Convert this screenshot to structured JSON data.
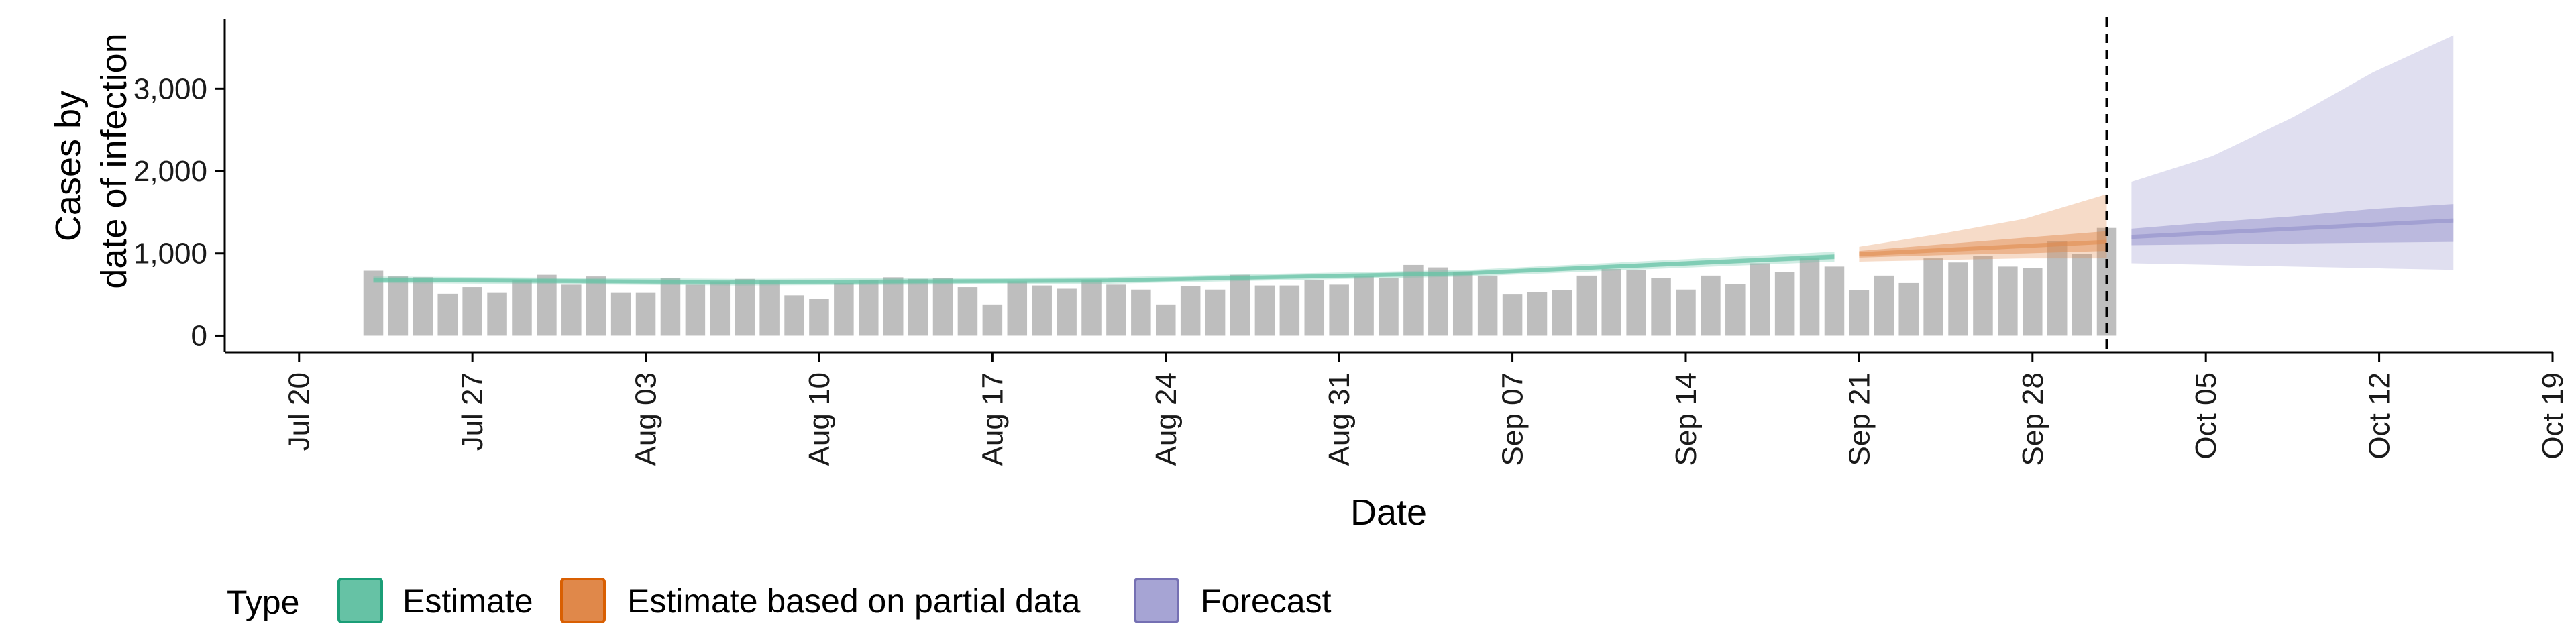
{
  "chart_data": {
    "type": "bar",
    "xlabel": "Date",
    "ylabel_lines": [
      "Cases by",
      "date of infection"
    ],
    "x_range": [
      "2020-07-17",
      "2020-10-19"
    ],
    "ylim": [
      -200,
      3850
    ],
    "y_ticks": [
      {
        "value": 0,
        "label": "0"
      },
      {
        "value": 1000,
        "label": "1,000"
      },
      {
        "value": 2000,
        "label": "2,000"
      },
      {
        "value": 3000,
        "label": "3,000"
      }
    ],
    "x_ticks": [
      {
        "date": "2020-07-20",
        "label": "Jul 20"
      },
      {
        "date": "2020-07-27",
        "label": "Jul 27"
      },
      {
        "date": "2020-08-03",
        "label": "Aug 03"
      },
      {
        "date": "2020-08-10",
        "label": "Aug 10"
      },
      {
        "date": "2020-08-17",
        "label": "Aug 17"
      },
      {
        "date": "2020-08-24",
        "label": "Aug 24"
      },
      {
        "date": "2020-08-31",
        "label": "Aug 31"
      },
      {
        "date": "2020-09-07",
        "label": "Sep 07"
      },
      {
        "date": "2020-09-14",
        "label": "Sep 14"
      },
      {
        "date": "2020-09-21",
        "label": "Sep 21"
      },
      {
        "date": "2020-09-28",
        "label": "Sep 28"
      },
      {
        "date": "2020-10-05",
        "label": "Oct 05"
      },
      {
        "date": "2020-10-12",
        "label": "Oct 12"
      },
      {
        "date": "2020-10-19",
        "label": "Oct 19"
      }
    ],
    "bars": {
      "start_date": "2020-07-23",
      "color": "#bebebe",
      "values": [
        790,
        720,
        710,
        510,
        590,
        520,
        680,
        740,
        620,
        720,
        520,
        520,
        700,
        620,
        660,
        690,
        670,
        490,
        450,
        640,
        680,
        710,
        690,
        700,
        590,
        380,
        660,
        610,
        570,
        680,
        620,
        560,
        380,
        600,
        560,
        740,
        610,
        610,
        680,
        620,
        720,
        700,
        860,
        830,
        770,
        730,
        500,
        530,
        550,
        730,
        810,
        800,
        700,
        560,
        730,
        630,
        880,
        770,
        940,
        840,
        550,
        730,
        640,
        940,
        890,
        970,
        840,
        820,
        1150,
        990,
        1310
      ]
    },
    "reference_line": {
      "date": "2020-10-01",
      "style": "dashed"
    },
    "ribbons": [
      {
        "type": "Estimate",
        "color": "#66c2a5",
        "start_date": "2020-07-23",
        "end_date": "2020-09-20",
        "median": [
          680,
          650,
          670,
          760,
          960
        ],
        "inner": [
          [
            660,
            700
          ],
          [
            630,
            670
          ],
          [
            650,
            690
          ],
          [
            740,
            780
          ],
          [
            930,
            990
          ]
        ],
        "outer": [
          [
            640,
            720
          ],
          [
            610,
            690
          ],
          [
            630,
            710
          ],
          [
            720,
            800
          ],
          [
            900,
            1020
          ]
        ]
      },
      {
        "type": "Estimate based on partial data",
        "color": "#e0884a",
        "start_date": "2020-09-21",
        "end_date": "2020-10-01",
        "median": [
          990,
          1040,
          1090,
          1140
        ],
        "inner": [
          [
            950,
            1030
          ],
          [
            980,
            1110
          ],
          [
            1000,
            1190
          ],
          [
            1030,
            1270
          ]
        ],
        "outer": [
          [
            900,
            1080
          ],
          [
            920,
            1240
          ],
          [
            940,
            1420
          ],
          [
            940,
            1720
          ]
        ]
      },
      {
        "type": "Forecast",
        "color": "#8e8cc8",
        "start_date": "2020-10-02",
        "end_date": "2020-10-15",
        "median": [
          1200,
          1250,
          1300,
          1350,
          1400
        ],
        "inner": [
          [
            1100,
            1300
          ],
          [
            1110,
            1380
          ],
          [
            1120,
            1450
          ],
          [
            1130,
            1540
          ],
          [
            1140,
            1600
          ]
        ],
        "outer": [
          [
            880,
            1870
          ],
          [
            860,
            2180
          ],
          [
            840,
            2650
          ],
          [
            820,
            3200
          ],
          [
            800,
            3650
          ]
        ]
      }
    ],
    "legend": {
      "title": "Type",
      "position": "bottom",
      "items": [
        {
          "label": "Estimate",
          "color": "#66c2a5",
          "stroke": "#1b9e77"
        },
        {
          "label": "Estimate based on partial data",
          "color": "#e0884a",
          "stroke": "#d95f02"
        },
        {
          "label": "Forecast",
          "color": "#a6a4d4",
          "stroke": "#7570b3"
        }
      ]
    },
    "grid": false
  }
}
